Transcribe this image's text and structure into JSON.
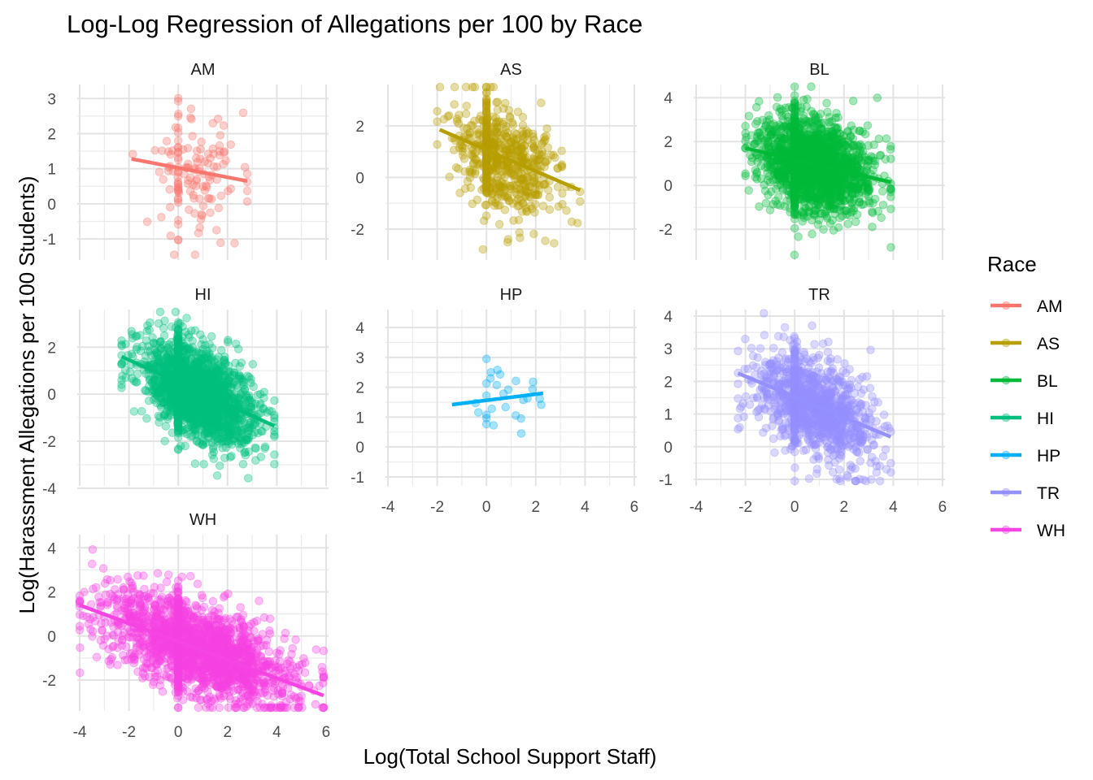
{
  "chart_data": {
    "type": "scatter",
    "title": "Log-Log Regression of Allegations per 100 by Race",
    "xlabel": "Log(Total School Support Staff)",
    "ylabel": "Log(Harassment Allegations per 100 Students)",
    "legend": {
      "title": "Race",
      "placement": "right"
    },
    "x_ticks": [
      -4,
      -2,
      0,
      2,
      4,
      6
    ],
    "xlim": [
      -4.1,
      6.1
    ],
    "facet_scales": "free_y",
    "panels": [
      {
        "name": "AM",
        "color": "#F8766D",
        "ylim": [
          -1.6,
          3.4
        ],
        "y_ticks": [
          -1,
          0,
          1,
          2,
          3
        ],
        "x_range": [
          -2.0,
          2.8
        ],
        "y_center": 0.7,
        "y_spread": 0.95,
        "n_points": 140,
        "fit": {
          "x": [
            -1.9,
            2.8
          ],
          "y": [
            1.28,
            0.65
          ]
        }
      },
      {
        "name": "AS",
        "color": "#B79F00",
        "ylim": [
          -3.2,
          3.6
        ],
        "y_ticks": [
          -2,
          0,
          2
        ],
        "x_range": [
          -2.0,
          3.8
        ],
        "y_center": 0.4,
        "y_spread": 1.0,
        "n_points": 650,
        "fit": {
          "x": [
            -1.9,
            3.8
          ],
          "y": [
            1.85,
            -0.5
          ]
        }
      },
      {
        "name": "BL",
        "color": "#00BA38",
        "ylim": [
          -3.4,
          4.6
        ],
        "y_ticks": [
          -2,
          0,
          2,
          4
        ],
        "x_range": [
          -2.0,
          3.9
        ],
        "y_center": 0.9,
        "y_spread": 1.05,
        "n_points": 2000,
        "fit": {
          "x": [
            -2.0,
            3.9
          ],
          "y": [
            1.7,
            0.15
          ]
        }
      },
      {
        "name": "HI",
        "color": "#00BF7D",
        "ylim": [
          -3.9,
          3.6
        ],
        "y_ticks": [
          -4,
          -2,
          0,
          2
        ],
        "x_range": [
          -2.3,
          3.9
        ],
        "y_center": -0.1,
        "y_spread": 1.0,
        "n_points": 2000,
        "fit": {
          "x": [
            -2.3,
            3.9
          ],
          "y": [
            1.6,
            -1.35
          ]
        }
      },
      {
        "name": "HP",
        "color": "#00B0F6",
        "ylim": [
          -1.3,
          4.6
        ],
        "y_ticks": [
          -1,
          0,
          1,
          2,
          3,
          4
        ],
        "x_range": [
          -1.5,
          2.4
        ],
        "y_center": 1.6,
        "y_spread": 0.7,
        "n_points": 28,
        "fit": {
          "x": [
            -1.4,
            2.3
          ],
          "y": [
            1.42,
            1.8
          ]
        }
      },
      {
        "name": "TR",
        "color": "#9590FF",
        "ylim": [
          -1.2,
          4.2
        ],
        "y_ticks": [
          -1,
          0,
          1,
          2,
          3,
          4
        ],
        "x_range": [
          -2.3,
          3.9
        ],
        "y_center": 1.1,
        "y_spread": 0.75,
        "n_points": 1200,
        "fit": {
          "x": [
            -2.3,
            3.9
          ],
          "y": [
            2.25,
            0.3
          ]
        }
      },
      {
        "name": "WH",
        "color": "#F643E3",
        "ylim": [
          -3.4,
          4.6
        ],
        "y_ticks": [
          -2,
          0,
          2,
          4
        ],
        "x_range": [
          -4.0,
          5.9
        ],
        "y_center": -0.5,
        "y_spread": 1.0,
        "n_points": 2200,
        "fit": {
          "x": [
            -4.0,
            5.9
          ],
          "y": [
            1.4,
            -2.7
          ]
        }
      }
    ]
  }
}
